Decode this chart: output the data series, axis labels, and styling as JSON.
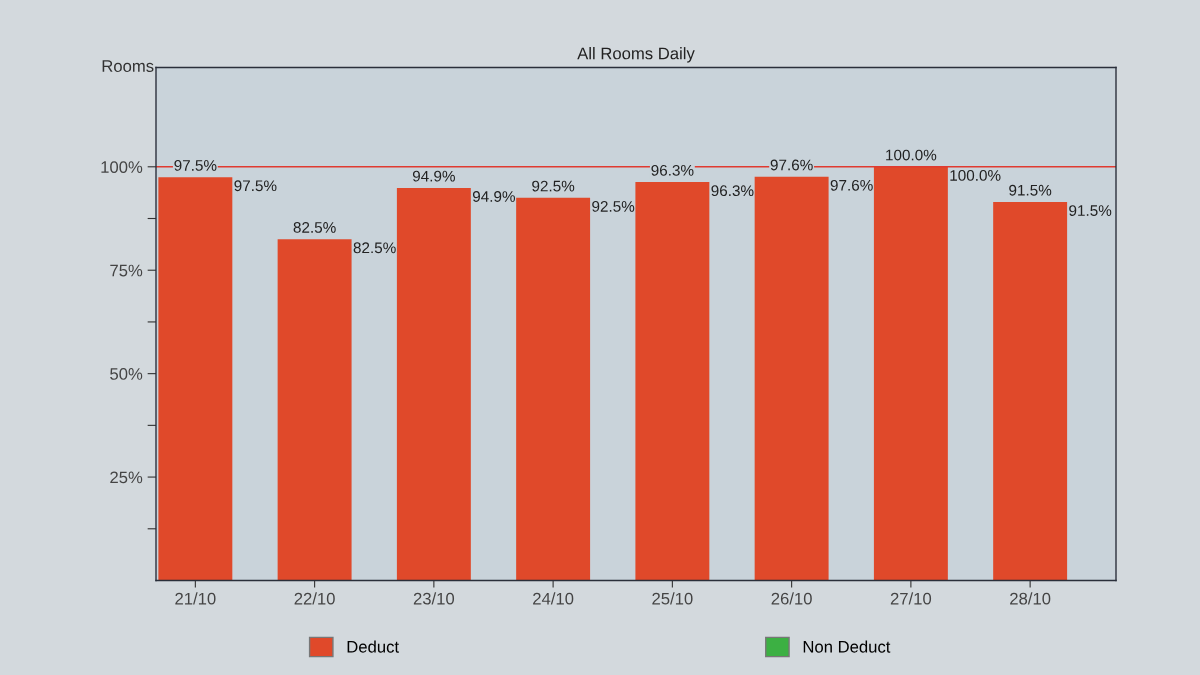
{
  "chart_data": {
    "type": "bar",
    "title": "All Rooms Daily",
    "ylabel": "Rooms",
    "categories": [
      "21/10",
      "22/10",
      "23/10",
      "24/10",
      "25/10",
      "26/10",
      "27/10",
      "28/10"
    ],
    "stacked": true,
    "series": [
      {
        "name": "Deduct",
        "color": "#e0492a",
        "values": [
          97.5,
          82.5,
          94.9,
          92.5,
          96.3,
          97.6,
          100.0,
          91.5
        ],
        "value_labels": [
          "97.5%",
          "82.5%",
          "94.9%",
          "92.5%",
          "96.3%",
          "97.6%",
          "100.0%",
          "91.5%"
        ]
      },
      {
        "name": "Non Deduct",
        "color": "#3cb043",
        "values": [
          null,
          null,
          null,
          null,
          null,
          null,
          null,
          null
        ]
      }
    ],
    "ylim": [
      0,
      124
    ],
    "yticks": [
      {
        "value": 12.5,
        "label": null
      },
      {
        "value": 25,
        "label": "25%"
      },
      {
        "value": 37.5,
        "label": null
      },
      {
        "value": 50,
        "label": "50%"
      },
      {
        "value": 62.5,
        "label": null
      },
      {
        "value": 75,
        "label": "75%"
      },
      {
        "value": 87.5,
        "label": null
      },
      {
        "value": 100,
        "label": "100%"
      }
    ],
    "ref_lines": [
      {
        "axis": "y",
        "value": 100,
        "color": "#e03a30"
      }
    ],
    "annotations": [
      {
        "text": "97.5%",
        "x": "21/10",
        "y": 97.5
      },
      {
        "text": "82.5%",
        "x": "22/10",
        "y": 82.5
      },
      {
        "text": "94.9%",
        "x": "23/10",
        "y": 94.9
      },
      {
        "text": "92.5%",
        "x": "24/10",
        "y": 92.5
      },
      {
        "text": "96.3%",
        "x": "25/10",
        "y": 96.3
      },
      {
        "text": "97.6%",
        "x": "26/10",
        "y": 97.6
      },
      {
        "text": "100.0%",
        "x": "27/10",
        "y": 100.0
      },
      {
        "text": "91.5%",
        "x": "28/10",
        "y": 91.5
      }
    ],
    "legend": "bottom",
    "grid": false
  }
}
